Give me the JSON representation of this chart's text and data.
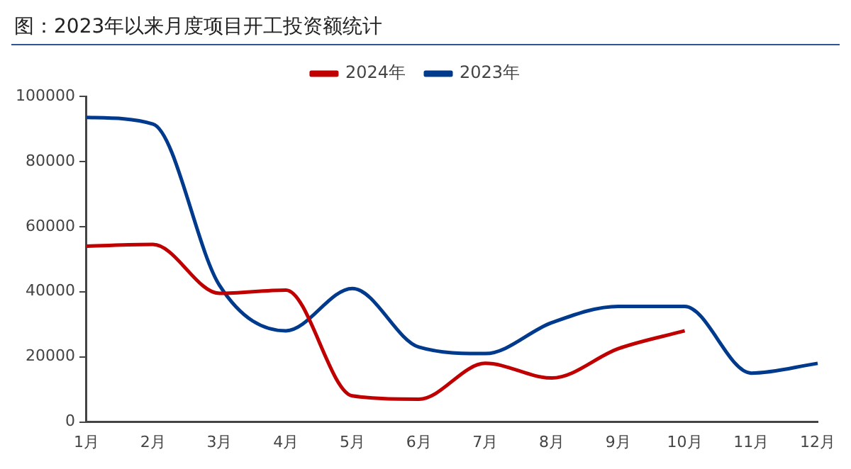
{
  "chart_data": {
    "type": "line",
    "title": "图：2023年以来月度项目开工投资额统计",
    "categories": [
      "1月",
      "2月",
      "3月",
      "4月",
      "5月",
      "6月",
      "7月",
      "8月",
      "9月",
      "10月",
      "11月",
      "12月"
    ],
    "series": [
      {
        "name": "2024年",
        "color": "#c00000",
        "values": [
          54000,
          54500,
          39500,
          40500,
          8000,
          7000,
          18000,
          13500,
          22500,
          28000,
          null,
          null
        ]
      },
      {
        "name": "2023年",
        "color": "#003a8c",
        "values": [
          93500,
          91500,
          42000,
          28000,
          41000,
          23000,
          21000,
          30500,
          35500,
          35500,
          15000,
          18000
        ]
      }
    ],
    "ylim": [
      0,
      100000
    ],
    "yticks": [
      0,
      20000,
      40000,
      60000,
      80000,
      100000
    ],
    "grid": false,
    "legend": "top",
    "marker": "none",
    "line_style": "solid"
  }
}
